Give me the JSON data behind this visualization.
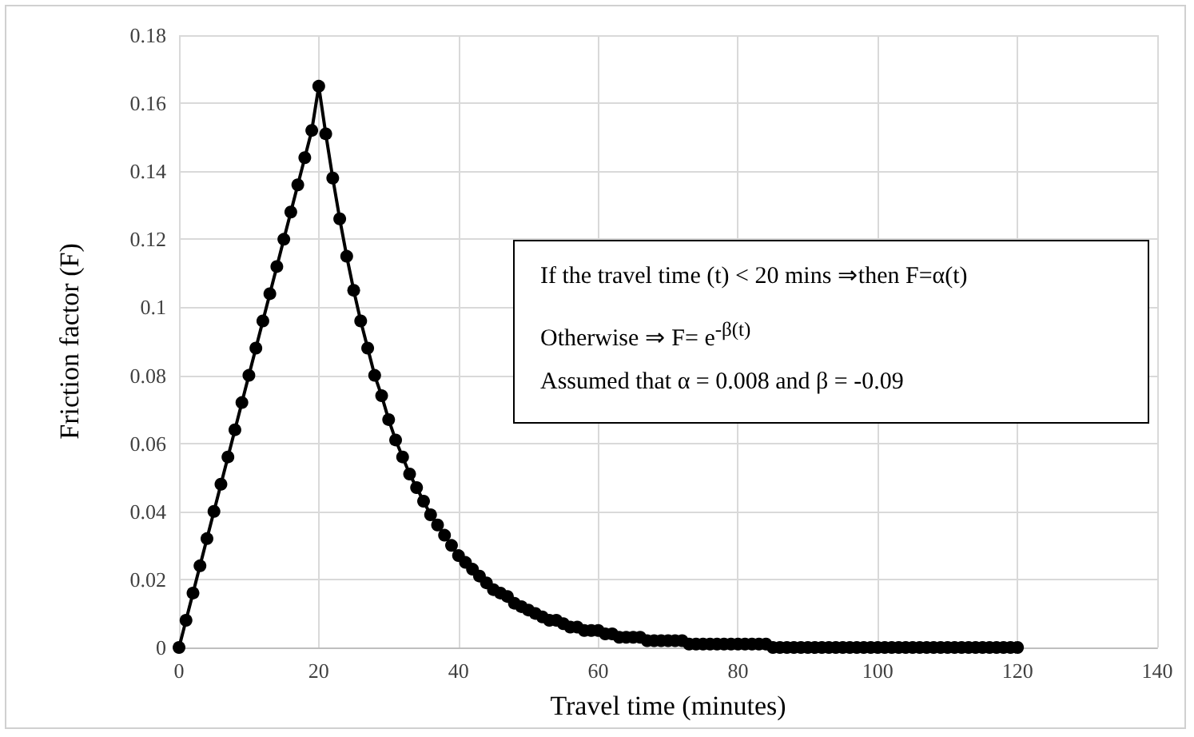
{
  "chart_data": {
    "type": "line",
    "xlabel": "Travel time (minutes)",
    "ylabel": "Friction factor (F)",
    "x": [
      0,
      1,
      2,
      3,
      4,
      5,
      6,
      7,
      8,
      9,
      10,
      11,
      12,
      13,
      14,
      15,
      16,
      17,
      18,
      19,
      20,
      21,
      22,
      23,
      24,
      25,
      26,
      27,
      28,
      29,
      30,
      31,
      32,
      33,
      34,
      35,
      36,
      37,
      38,
      39,
      40,
      41,
      42,
      43,
      44,
      45,
      46,
      47,
      48,
      49,
      50,
      51,
      52,
      53,
      54,
      55,
      56,
      57,
      58,
      59,
      60,
      61,
      62,
      63,
      64,
      65,
      66,
      67,
      68,
      69,
      70,
      71,
      72,
      73,
      74,
      75,
      76,
      77,
      78,
      79,
      80,
      81,
      82,
      83,
      84,
      85,
      86,
      87,
      88,
      89,
      90,
      91,
      92,
      93,
      94,
      95,
      96,
      97,
      98,
      99,
      100,
      101,
      102,
      103,
      104,
      105,
      106,
      107,
      108,
      109,
      110,
      111,
      112,
      113,
      114,
      115,
      116,
      117,
      118,
      119,
      120
    ],
    "series": [
      {
        "color": "#000000",
        "values": [
          0,
          0.008,
          0.016,
          0.024,
          0.032,
          0.04,
          0.048,
          0.056,
          0.064,
          0.072,
          0.08,
          0.088,
          0.096,
          0.104,
          0.112,
          0.12,
          0.128,
          0.136,
          0.144,
          0.152,
          0.165,
          0.151,
          0.138,
          0.126,
          0.115,
          0.105,
          0.096,
          0.088,
          0.08,
          0.074,
          0.067,
          0.061,
          0.056,
          0.051,
          0.047,
          0.043,
          0.039,
          0.036,
          0.033,
          0.03,
          0.027,
          0.025,
          0.023,
          0.021,
          0.019,
          0.017,
          0.016,
          0.015,
          0.013,
          0.012,
          0.011,
          0.01,
          0.009,
          0.008,
          0.008,
          0.007,
          0.006,
          0.006,
          0.005,
          0.005,
          0.005,
          0.004,
          0.004,
          0.003,
          0.003,
          0.003,
          0.003,
          0.002,
          0.002,
          0.002,
          0.002,
          0.002,
          0.002,
          0.001,
          0.001,
          0.001,
          0.001,
          0.001,
          0.001,
          0.001,
          0.001,
          0.001,
          0.001,
          0.001,
          0.001,
          0,
          0,
          0,
          0,
          0,
          0,
          0,
          0,
          0,
          0,
          0,
          0,
          0,
          0,
          0,
          0,
          0,
          0,
          0,
          0,
          0,
          0,
          0,
          0,
          0,
          0,
          0,
          0,
          0,
          0,
          0,
          0,
          0,
          0,
          0,
          0
        ]
      }
    ],
    "xlim": [
      0,
      140
    ],
    "xticks": [
      0,
      20,
      40,
      60,
      80,
      100,
      120,
      140
    ],
    "ylim": [
      0,
      0.18
    ],
    "yticks": [
      0,
      0.02,
      0.04,
      0.06,
      0.08,
      0.1,
      0.12,
      0.14,
      0.16,
      0.18
    ],
    "grid": true,
    "marker": "circle",
    "line_style": "solid",
    "annotations": [
      "If the travel time (t) < 20 mins ⇒then F=α(t)",
      "Otherwise ⇒ F= e$^{-β(t)}$",
      "Assumed that α = 0.008 and β = -0.09"
    ]
  }
}
